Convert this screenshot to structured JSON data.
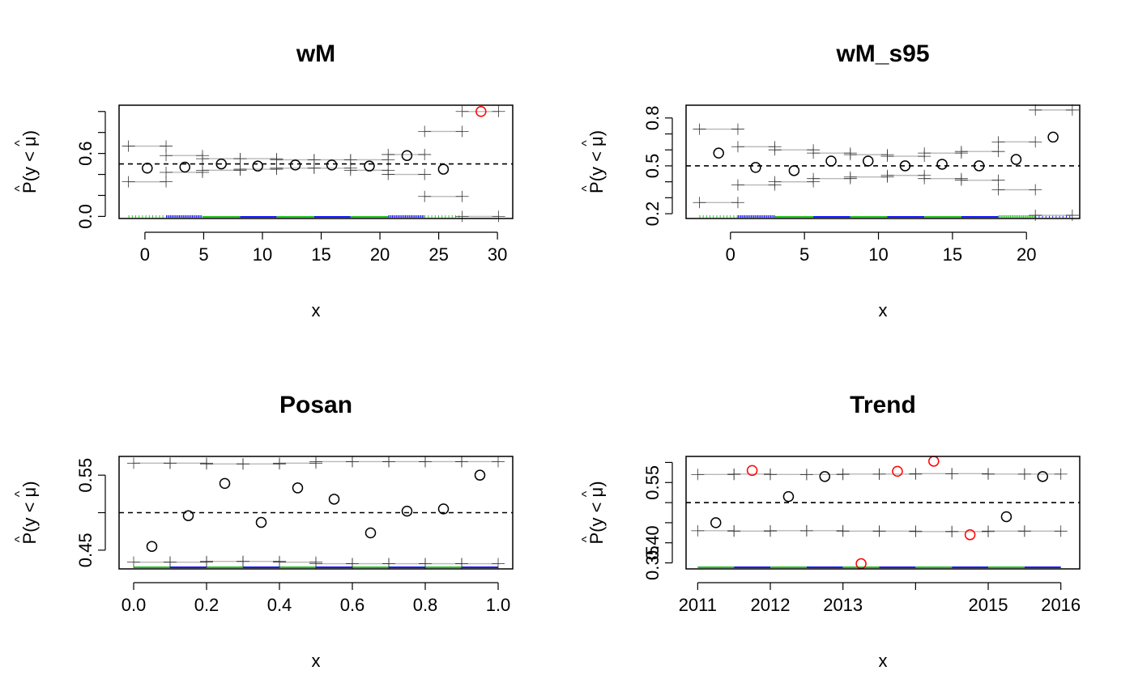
{
  "chart_data": [
    {
      "type": "scatter",
      "title": "wM",
      "xlabel": "x",
      "ylabel": "P(y < μ)",
      "xlim": [
        -2.2,
        31.3
      ],
      "ylim": [
        -0.02,
        1.06
      ],
      "x_ticks": [
        0,
        5,
        10,
        15,
        20,
        25,
        30
      ],
      "x_tick_labels": [
        "0",
        "5",
        "10",
        "15",
        "20",
        "25",
        "30"
      ],
      "y_ticks": [
        0.0,
        0.2,
        0.4,
        0.6,
        0.8,
        1.0
      ],
      "y_tick_labels": [
        "0.0",
        "",
        "",
        "0.6",
        "",
        ""
      ],
      "reference_line": 0.5,
      "points": {
        "x": [
          0.2,
          3.4,
          6.5,
          9.6,
          12.8,
          15.9,
          19.1,
          22.3,
          25.4,
          28.6
        ],
        "y": [
          0.46,
          0.47,
          0.5,
          0.48,
          0.49,
          0.49,
          0.48,
          0.58,
          0.45,
          1.0
        ],
        "outside_band": [
          false,
          false,
          false,
          false,
          false,
          false,
          false,
          false,
          false,
          true
        ]
      },
      "band": {
        "bin_edges": [
          -1.4,
          1.8,
          4.9,
          8.1,
          11.2,
          14.4,
          17.5,
          20.7,
          23.8,
          27.0,
          30.1
        ],
        "upper": [
          0.67,
          0.58,
          0.55,
          0.55,
          0.54,
          0.54,
          0.54,
          0.59,
          0.81,
          1.0
        ],
        "lower": [
          0.33,
          0.42,
          0.44,
          0.45,
          0.46,
          0.46,
          0.44,
          0.4,
          0.19,
          0.0
        ]
      },
      "rug_segments": [
        {
          "from": -1.4,
          "to": 1.8,
          "color": "#22c322",
          "style": "sparse"
        },
        {
          "from": 1.8,
          "to": 4.9,
          "color": "#1a1aff",
          "style": "dense"
        },
        {
          "from": 4.9,
          "to": 8.1,
          "color": "#22c322",
          "style": "solid"
        },
        {
          "from": 8.1,
          "to": 11.2,
          "color": "#1a1aff",
          "style": "solid"
        },
        {
          "from": 11.2,
          "to": 14.4,
          "color": "#22c322",
          "style": "solid"
        },
        {
          "from": 14.4,
          "to": 17.5,
          "color": "#1a1aff",
          "style": "solid"
        },
        {
          "from": 17.5,
          "to": 20.7,
          "color": "#22c322",
          "style": "solid"
        },
        {
          "from": 20.7,
          "to": 23.8,
          "color": "#1a1aff",
          "style": "dense"
        },
        {
          "from": 23.8,
          "to": 27.0,
          "color": "#22c322",
          "style": "sparse"
        }
      ]
    },
    {
      "type": "scatter",
      "title": "wM_s95",
      "xlabel": "x",
      "ylabel": "P(y < μ)",
      "xlim": [
        -3.0,
        23.6
      ],
      "ylim": [
        0.17,
        0.88
      ],
      "x_ticks": [
        0,
        5,
        10,
        15,
        20
      ],
      "x_tick_labels": [
        "0",
        "5",
        "10",
        "15",
        "20"
      ],
      "y_ticks": [
        0.2,
        0.3,
        0.4,
        0.5,
        0.6,
        0.7,
        0.8
      ],
      "y_tick_labels": [
        "0.2",
        "",
        "",
        "0.5",
        "",
        "",
        "0.8"
      ],
      "reference_line": 0.5,
      "points": {
        "x": [
          -0.8,
          1.7,
          4.3,
          6.8,
          9.3,
          11.8,
          14.3,
          16.8,
          19.3,
          21.8
        ],
        "y": [
          0.58,
          0.49,
          0.47,
          0.53,
          0.53,
          0.5,
          0.51,
          0.5,
          0.54,
          0.68
        ],
        "outside_band": [
          false,
          false,
          false,
          false,
          false,
          false,
          false,
          false,
          false,
          false
        ]
      },
      "band": {
        "bin_edges": [
          -2.1,
          0.5,
          3.0,
          5.6,
          8.1,
          10.6,
          13.1,
          15.6,
          18.1,
          20.6,
          23.1
        ],
        "upper": [
          0.73,
          0.62,
          0.6,
          0.58,
          0.57,
          0.56,
          0.58,
          0.59,
          0.65,
          0.85
        ],
        "lower": [
          0.27,
          0.38,
          0.4,
          0.42,
          0.43,
          0.44,
          0.42,
          0.41,
          0.35,
          0.19
        ]
      },
      "rug_segments": [
        {
          "from": -2.1,
          "to": 0.5,
          "color": "#22c322",
          "style": "sparse"
        },
        {
          "from": 0.5,
          "to": 3.0,
          "color": "#1a1aff",
          "style": "dense"
        },
        {
          "from": 3.0,
          "to": 5.6,
          "color": "#22c322",
          "style": "solid"
        },
        {
          "from": 5.6,
          "to": 8.1,
          "color": "#1a1aff",
          "style": "solid"
        },
        {
          "from": 8.1,
          "to": 10.6,
          "color": "#22c322",
          "style": "solid"
        },
        {
          "from": 10.6,
          "to": 13.1,
          "color": "#1a1aff",
          "style": "solid"
        },
        {
          "from": 13.1,
          "to": 15.6,
          "color": "#22c322",
          "style": "solid"
        },
        {
          "from": 15.6,
          "to": 18.1,
          "color": "#1a1aff",
          "style": "solid"
        },
        {
          "from": 18.1,
          "to": 20.6,
          "color": "#22c322",
          "style": "dense"
        },
        {
          "from": 20.6,
          "to": 23.1,
          "color": "#1a1aff",
          "style": "sparse"
        }
      ]
    },
    {
      "type": "scatter",
      "title": "Posan",
      "xlabel": "x",
      "ylabel": "P(y < μ)",
      "xlim": [
        -0.04,
        1.04
      ],
      "ylim": [
        0.425,
        0.575
      ],
      "x_ticks": [
        0.0,
        0.2,
        0.4,
        0.6,
        0.8,
        1.0
      ],
      "x_tick_labels": [
        "0.0",
        "0.2",
        "0.4",
        "0.6",
        "0.8",
        "1.0"
      ],
      "y_ticks": [
        0.45,
        0.5,
        0.55
      ],
      "y_tick_labels": [
        "0.45",
        "",
        "0.55"
      ],
      "reference_line": 0.5,
      "points": {
        "x": [
          0.05,
          0.15,
          0.25,
          0.35,
          0.45,
          0.55,
          0.65,
          0.75,
          0.85,
          0.95
        ],
        "y": [
          0.455,
          0.496,
          0.539,
          0.487,
          0.533,
          0.518,
          0.473,
          0.502,
          0.505,
          0.55
        ],
        "outside_band": [
          false,
          false,
          false,
          false,
          false,
          false,
          false,
          false,
          false,
          false
        ]
      },
      "band": {
        "bin_edges": [
          0.0,
          0.1,
          0.2,
          0.3,
          0.4,
          0.5,
          0.6,
          0.7,
          0.8,
          0.9,
          1.0
        ],
        "upper": [
          0.566,
          0.566,
          0.565,
          0.565,
          0.566,
          0.568,
          0.568,
          0.568,
          0.568,
          0.568
        ],
        "lower": [
          0.434,
          0.434,
          0.435,
          0.435,
          0.434,
          0.432,
          0.432,
          0.432,
          0.432,
          0.432
        ]
      },
      "rug_segments": [
        {
          "from": 0.0,
          "to": 0.1,
          "color": "#22c322",
          "style": "solid"
        },
        {
          "from": 0.1,
          "to": 0.2,
          "color": "#1a1aff",
          "style": "solid"
        },
        {
          "from": 0.2,
          "to": 0.3,
          "color": "#22c322",
          "style": "solid"
        },
        {
          "from": 0.3,
          "to": 0.4,
          "color": "#1a1aff",
          "style": "solid"
        },
        {
          "from": 0.4,
          "to": 0.5,
          "color": "#22c322",
          "style": "solid"
        },
        {
          "from": 0.5,
          "to": 0.6,
          "color": "#1a1aff",
          "style": "solid"
        },
        {
          "from": 0.6,
          "to": 0.7,
          "color": "#22c322",
          "style": "solid"
        },
        {
          "from": 0.7,
          "to": 0.8,
          "color": "#1a1aff",
          "style": "solid"
        },
        {
          "from": 0.8,
          "to": 0.9,
          "color": "#22c322",
          "style": "solid"
        },
        {
          "from": 0.9,
          "to": 1.0,
          "color": "#1a1aff",
          "style": "solid"
        }
      ]
    },
    {
      "type": "scatter",
      "title": "Trend",
      "xlabel": "x",
      "ylabel": "P(y < μ)",
      "xlim": [
        2010.84,
        2016.26
      ],
      "ylim": [
        0.335,
        0.615
      ],
      "x_ticks": [
        2011.0,
        2012.0,
        2013.0,
        2014.0,
        2015.0,
        2016.0
      ],
      "x_tick_labels": [
        "2011",
        "2012",
        "2013",
        "",
        "2015",
        "2016"
      ],
      "y_ticks": [
        0.35,
        0.4,
        0.45,
        0.5,
        0.55,
        0.6
      ],
      "y_tick_labels": [
        "0.35",
        "0.40",
        "",
        "",
        "0.55",
        ""
      ],
      "reference_line": 0.5,
      "points": {
        "x": [
          2011.25,
          2011.75,
          2012.25,
          2012.75,
          2013.25,
          2013.75,
          2014.25,
          2014.75,
          2015.25,
          2015.75
        ],
        "y": [
          0.45,
          0.58,
          0.515,
          0.565,
          0.348,
          0.578,
          0.603,
          0.42,
          0.465,
          0.565
        ],
        "outside_band": [
          false,
          true,
          false,
          false,
          true,
          true,
          true,
          true,
          false,
          false
        ]
      },
      "band": {
        "bin_edges": [
          2011.0,
          2011.5,
          2012.0,
          2012.5,
          2013.0,
          2013.5,
          2014.0,
          2014.5,
          2015.0,
          2015.5,
          2016.0
        ],
        "upper": [
          0.57,
          0.571,
          0.57,
          0.57,
          0.571,
          0.571,
          0.572,
          0.572,
          0.571,
          0.571
        ],
        "lower": [
          0.43,
          0.429,
          0.43,
          0.43,
          0.429,
          0.429,
          0.428,
          0.428,
          0.429,
          0.429
        ]
      },
      "rug_segments": [
        {
          "from": 2011.0,
          "to": 2011.5,
          "color": "#22c322",
          "style": "solid"
        },
        {
          "from": 2011.5,
          "to": 2012.0,
          "color": "#1a1aff",
          "style": "solid"
        },
        {
          "from": 2012.0,
          "to": 2012.5,
          "color": "#22c322",
          "style": "solid"
        },
        {
          "from": 2012.5,
          "to": 2013.0,
          "color": "#1a1aff",
          "style": "solid"
        },
        {
          "from": 2013.0,
          "to": 2013.5,
          "color": "#22c322",
          "style": "solid"
        },
        {
          "from": 2013.5,
          "to": 2014.0,
          "color": "#1a1aff",
          "style": "solid"
        },
        {
          "from": 2014.0,
          "to": 2014.5,
          "color": "#22c322",
          "style": "solid"
        },
        {
          "from": 2014.5,
          "to": 2015.0,
          "color": "#1a1aff",
          "style": "solid"
        },
        {
          "from": 2015.0,
          "to": 2015.5,
          "color": "#22c322",
          "style": "solid"
        },
        {
          "from": 2015.5,
          "to": 2016.0,
          "color": "#1a1aff",
          "style": "solid"
        }
      ]
    }
  ],
  "colors": {
    "inside_point": "#000000",
    "outside_point": "#ff0000",
    "band_line": "#b8b8b8",
    "band_cross": "#333333",
    "reference_line": "#000000"
  }
}
